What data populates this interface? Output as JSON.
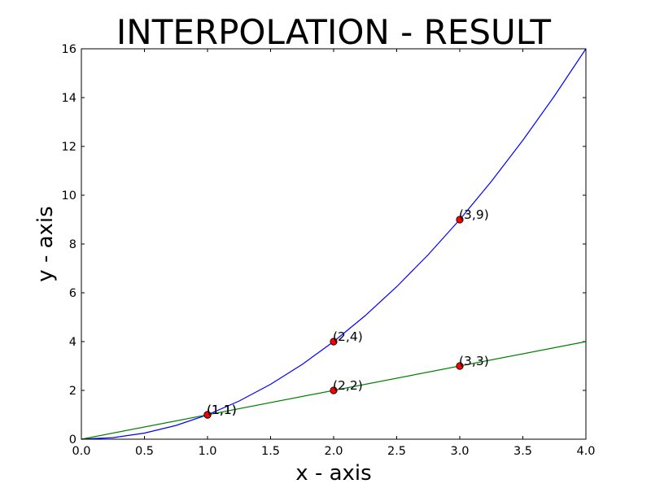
{
  "chart_data": {
    "type": "line",
    "title": "INTERPOLATION - RESULT",
    "xlabel": "x - axis",
    "ylabel": "y - axis",
    "xlim": [
      0,
      4
    ],
    "ylim": [
      0,
      16
    ],
    "xticks": [
      "0.0",
      "0.5",
      "1.0",
      "1.5",
      "2.0",
      "2.5",
      "3.0",
      "3.5",
      "4.0"
    ],
    "yticks": [
      "0",
      "2",
      "4",
      "6",
      "8",
      "10",
      "12",
      "14",
      "16"
    ],
    "grid": false,
    "series": [
      {
        "color": "#0000ff",
        "x": [
          0.0,
          0.25,
          0.5,
          0.75,
          1.0,
          1.25,
          1.5,
          1.75,
          2.0,
          2.25,
          2.5,
          2.75,
          3.0,
          3.25,
          3.5,
          3.75,
          4.0
        ],
        "y": [
          0.0,
          0.0625,
          0.25,
          0.5625,
          1.0,
          1.5625,
          2.25,
          3.0625,
          4.0,
          5.0625,
          6.25,
          7.5625,
          9.0,
          10.5625,
          12.25,
          14.0625,
          16.0
        ]
      },
      {
        "color": "#008000",
        "x": [
          0.0,
          4.0
        ],
        "y": [
          0.0,
          4.0
        ]
      }
    ],
    "points": [
      {
        "x": 1,
        "y": 1,
        "label": "(1,1)"
      },
      {
        "x": 2,
        "y": 4,
        "label": "(2,4)"
      },
      {
        "x": 3,
        "y": 9,
        "label": "(3,9)"
      },
      {
        "x": 1,
        "y": 1,
        "label": "(1,1)"
      },
      {
        "x": 2,
        "y": 2,
        "label": "(2,2)"
      },
      {
        "x": 3,
        "y": 3,
        "label": "(3,3)"
      }
    ],
    "point_color": "#ff0000"
  }
}
